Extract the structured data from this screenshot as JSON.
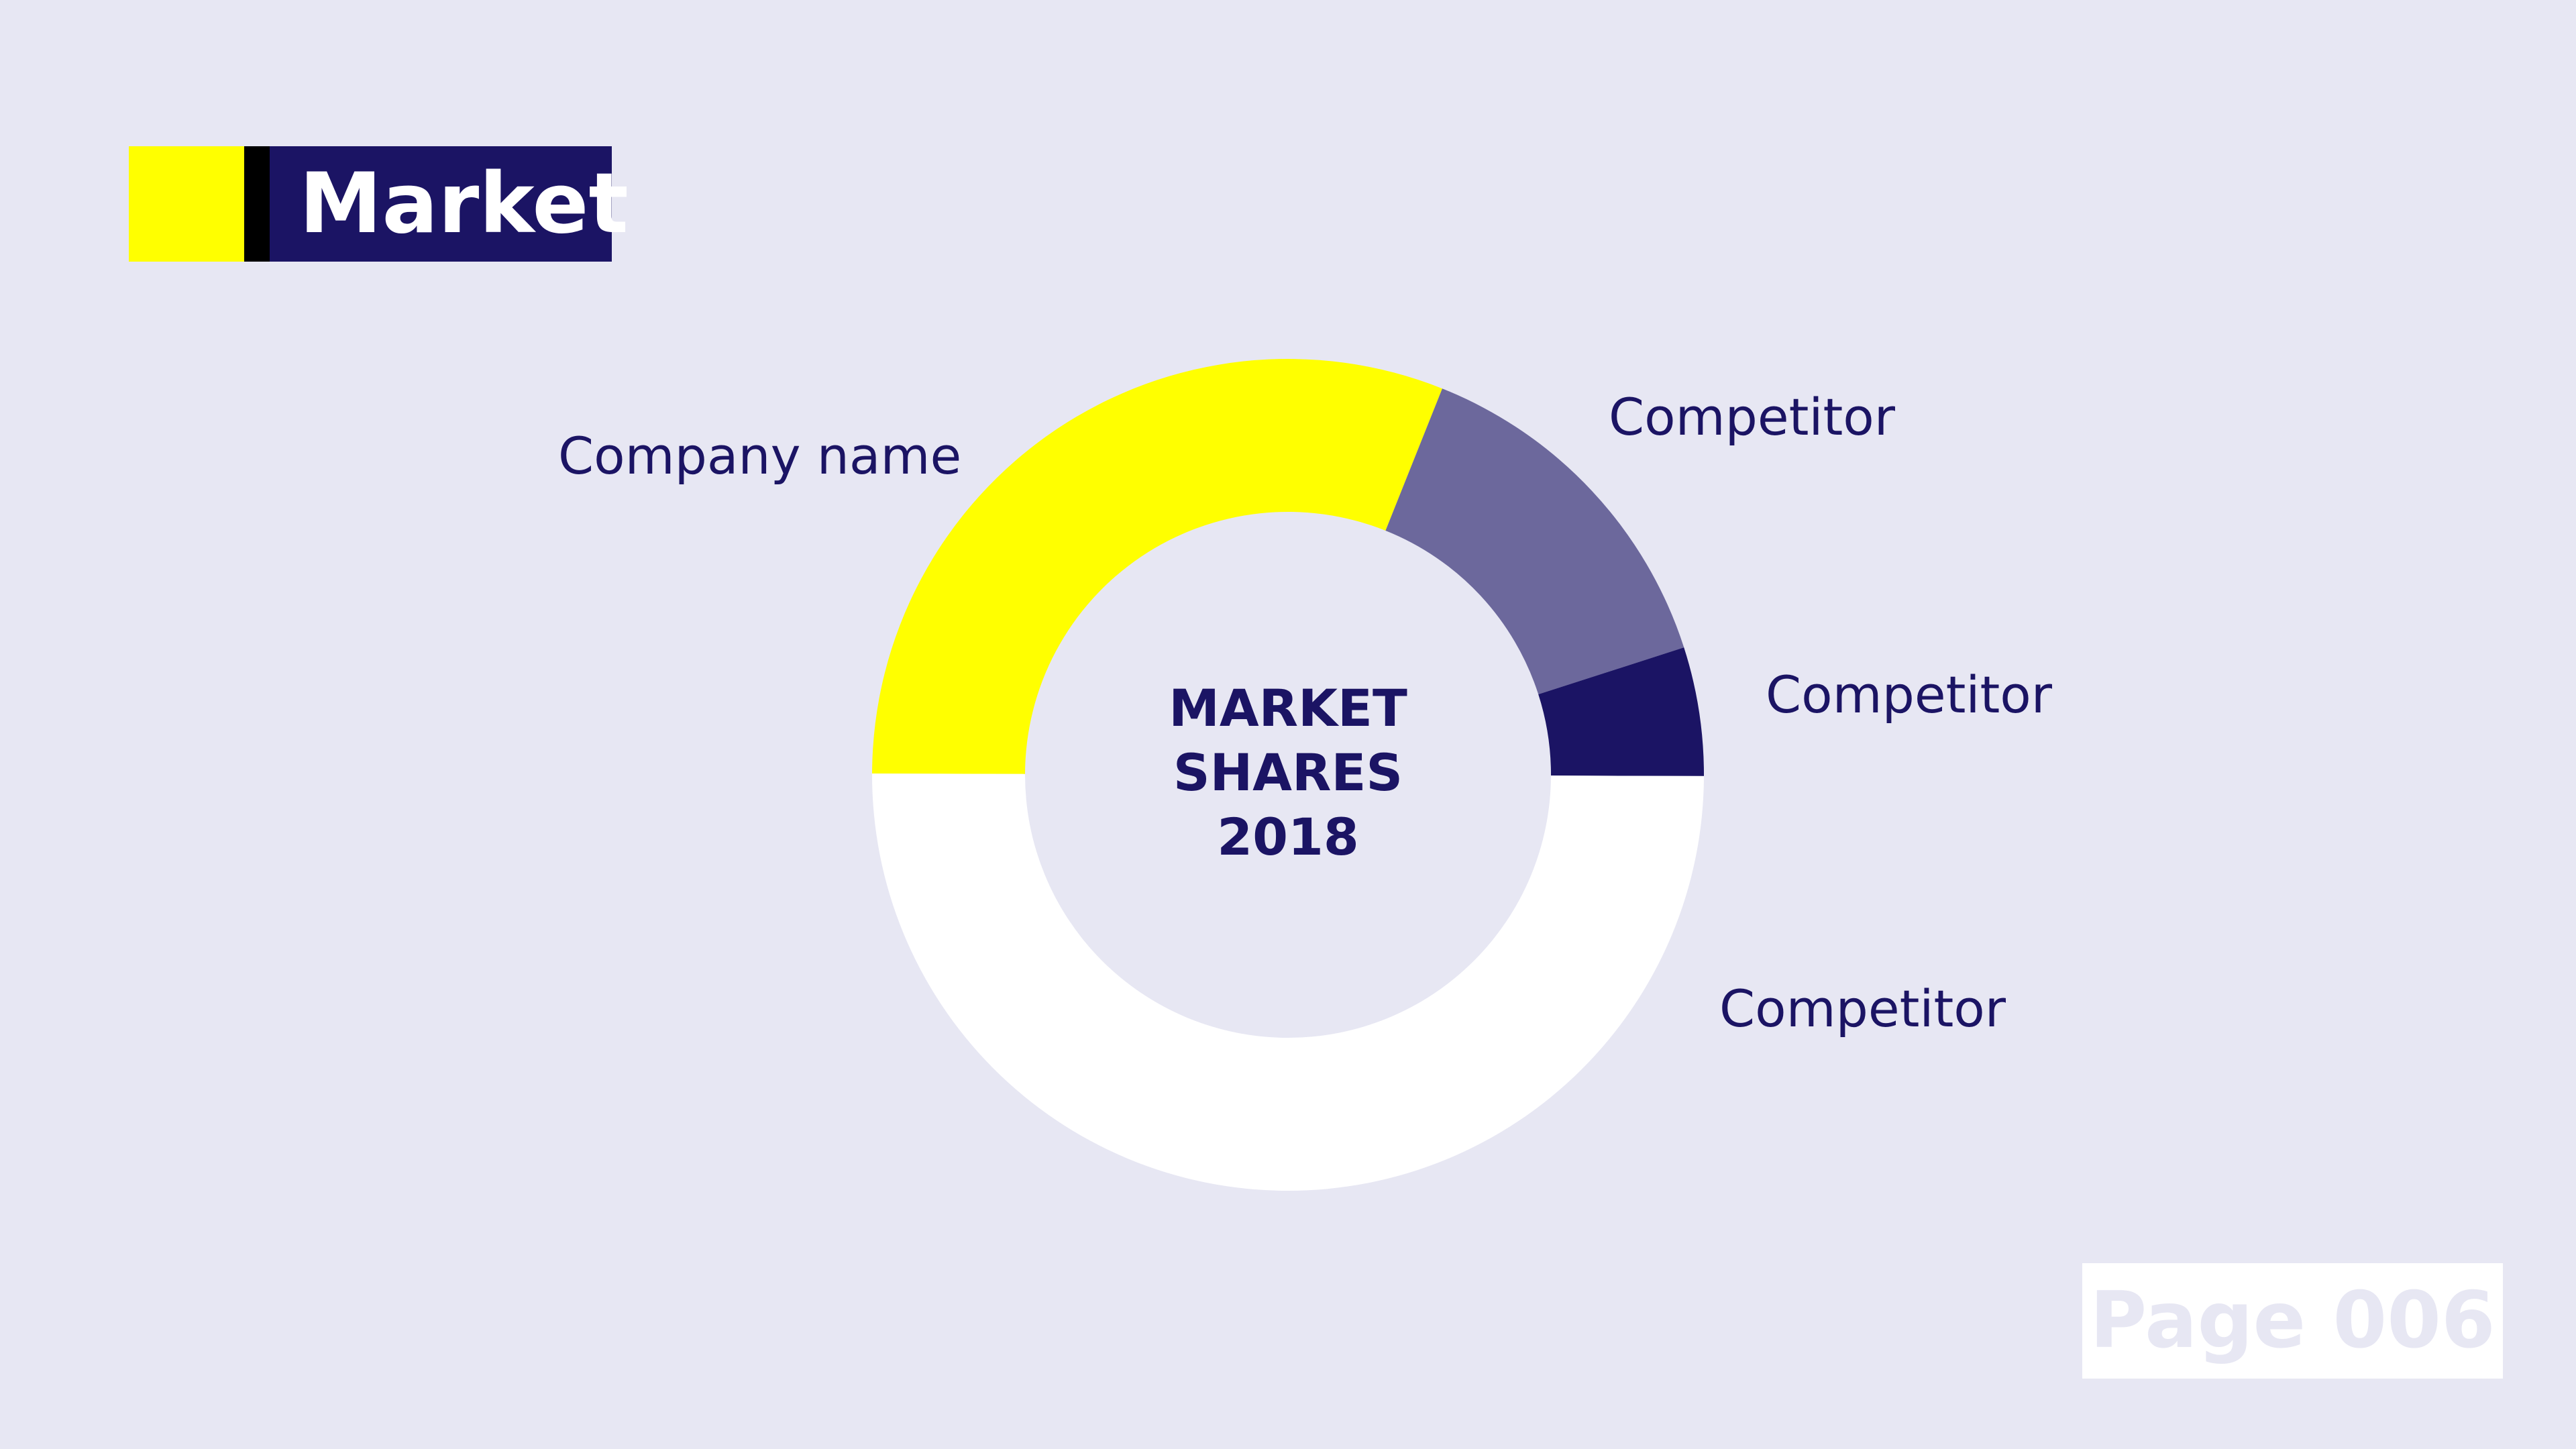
{
  "header": {
    "title": "Market",
    "accent_color": "#ffff00",
    "bar_color": "#1b1464"
  },
  "chart_data": {
    "type": "pie",
    "variant": "donut",
    "center_label": [
      "MARKET",
      "SHARES",
      "2018"
    ],
    "categories": [
      "Company name",
      "Competitor",
      "Competitor",
      "Competitor"
    ],
    "values": [
      31,
      14,
      5,
      50
    ],
    "colors": [
      "#ffff00",
      "#6c689c",
      "#1b1464",
      "#ffffff"
    ]
  },
  "footer": {
    "page_label": "Page 006"
  }
}
